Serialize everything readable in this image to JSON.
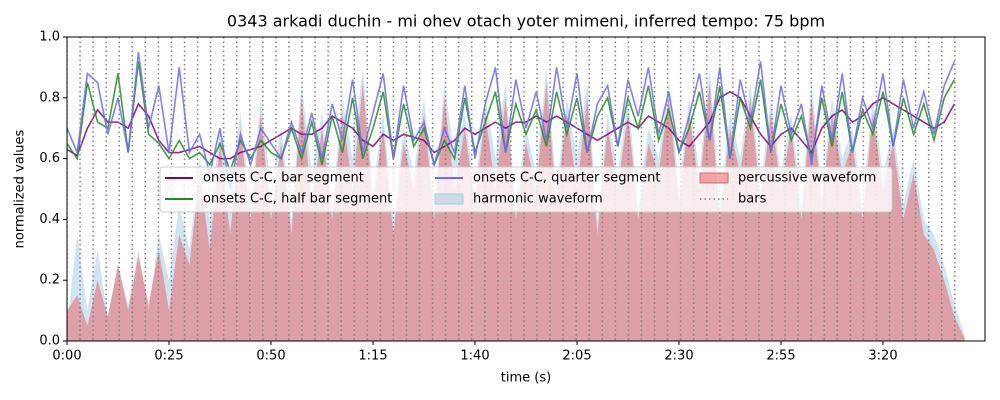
{
  "chart_data": {
    "type": "line",
    "title": "0343 arkadi duchin - mi ohev otach yoter mimeni, inferred tempo: 75 bpm",
    "xlabel": "time (s)",
    "ylabel": "normalized values",
    "xlim": [
      0,
      225
    ],
    "ylim": [
      0,
      1
    ],
    "xticks": [
      {
        "value": 0,
        "label": "0:00"
      },
      {
        "value": 25,
        "label": "0:25"
      },
      {
        "value": 50,
        "label": "0:50"
      },
      {
        "value": 75,
        "label": "1:15"
      },
      {
        "value": 100,
        "label": "1:40"
      },
      {
        "value": 125,
        "label": "2:05"
      },
      {
        "value": 150,
        "label": "2:30"
      },
      {
        "value": 175,
        "label": "2:55"
      },
      {
        "value": 200,
        "label": "3:20"
      }
    ],
    "yticks": [
      {
        "value": 0,
        "label": "0.0"
      },
      {
        "value": 0.2,
        "label": "0.2"
      },
      {
        "value": 0.4,
        "label": "0.4"
      },
      {
        "value": 0.6,
        "label": "0.6"
      },
      {
        "value": 0.8,
        "label": "0.8"
      },
      {
        "value": 1,
        "label": "1.0"
      }
    ],
    "legend": "center",
    "x": [
      0,
      2.5,
      5,
      7.5,
      10,
      12.5,
      15,
      17.5,
      20,
      22.5,
      25,
      27.5,
      30,
      32.5,
      35,
      37.5,
      40,
      42.5,
      45,
      47.5,
      50,
      52.5,
      55,
      57.5,
      60,
      62.5,
      65,
      67.5,
      70,
      72.5,
      75,
      77.5,
      80,
      82.5,
      85,
      87.5,
      90,
      92.5,
      95,
      97.5,
      100,
      102.5,
      105,
      107.5,
      110,
      112.5,
      115,
      117.5,
      120,
      122.5,
      125,
      127.5,
      130,
      132.5,
      135,
      137.5,
      140,
      142.5,
      145,
      147.5,
      150,
      152.5,
      155,
      157.5,
      160,
      162.5,
      165,
      167.5,
      170,
      172.5,
      175,
      177.5,
      180,
      182.5,
      185,
      187.5,
      190,
      192.5,
      195,
      197.5,
      200,
      202.5,
      205,
      207.5,
      210,
      212.5,
      215,
      217.5,
      220
    ],
    "series": [
      {
        "name": "onsets C-C, bar segment",
        "style": "line",
        "color": "#800080",
        "values": [
          0.63,
          0.61,
          0.7,
          0.76,
          0.72,
          0.72,
          0.7,
          0.78,
          0.74,
          0.66,
          0.62,
          0.62,
          0.63,
          0.64,
          0.62,
          0.6,
          0.6,
          0.62,
          0.63,
          0.64,
          0.66,
          0.68,
          0.7,
          0.68,
          0.68,
          0.7,
          0.74,
          0.72,
          0.7,
          0.66,
          0.64,
          0.68,
          0.66,
          0.68,
          0.67,
          0.66,
          0.62,
          0.64,
          0.66,
          0.7,
          0.68,
          0.7,
          0.72,
          0.7,
          0.72,
          0.72,
          0.74,
          0.72,
          0.74,
          0.72,
          0.7,
          0.68,
          0.66,
          0.68,
          0.7,
          0.72,
          0.7,
          0.74,
          0.72,
          0.7,
          0.66,
          0.64,
          0.68,
          0.72,
          0.8,
          0.82,
          0.8,
          0.74,
          0.68,
          0.64,
          0.68,
          0.7,
          0.66,
          0.62,
          0.7,
          0.74,
          0.76,
          0.72,
          0.74,
          0.78,
          0.8,
          0.78,
          0.76,
          0.74,
          0.72,
          0.7,
          0.72,
          0.78,
          null
        ]
      },
      {
        "name": "onsets C-C, half bar segment",
        "style": "line",
        "color": "#228b22",
        "values": [
          0.65,
          0.6,
          0.85,
          0.72,
          0.7,
          0.88,
          0.62,
          0.92,
          0.68,
          0.65,
          0.6,
          0.66,
          0.6,
          0.62,
          0.58,
          0.65,
          0.56,
          0.66,
          0.6,
          0.66,
          0.62,
          0.6,
          0.7,
          0.6,
          0.72,
          0.58,
          0.74,
          0.62,
          0.8,
          0.6,
          0.7,
          0.82,
          0.6,
          0.78,
          0.64,
          0.7,
          0.58,
          0.66,
          0.6,
          0.8,
          0.62,
          0.72,
          0.82,
          0.62,
          0.78,
          0.68,
          0.76,
          0.64,
          0.82,
          0.68,
          0.8,
          0.62,
          0.74,
          0.8,
          0.64,
          0.8,
          0.7,
          0.84,
          0.66,
          0.76,
          0.62,
          0.7,
          0.82,
          0.66,
          0.84,
          0.6,
          0.8,
          0.7,
          0.86,
          0.62,
          0.78,
          0.66,
          0.74,
          0.6,
          0.8,
          0.64,
          0.82,
          0.62,
          0.76,
          0.68,
          0.82,
          0.64,
          0.8,
          0.68,
          0.78,
          0.66,
          0.8,
          0.86,
          null
        ]
      },
      {
        "name": "onsets C-C, quarter segment",
        "style": "line",
        "color": "#6b6bee",
        "values": [
          0.7,
          0.62,
          0.88,
          0.85,
          0.68,
          0.8,
          0.62,
          0.95,
          0.7,
          0.84,
          0.62,
          0.9,
          0.62,
          0.68,
          0.55,
          0.7,
          0.5,
          0.68,
          0.58,
          0.7,
          0.65,
          0.6,
          0.72,
          0.62,
          0.75,
          0.6,
          0.78,
          0.66,
          0.86,
          0.62,
          0.75,
          0.88,
          0.6,
          0.84,
          0.66,
          0.72,
          0.58,
          0.7,
          0.62,
          0.84,
          0.6,
          0.78,
          0.9,
          0.62,
          0.86,
          0.7,
          0.82,
          0.66,
          0.9,
          0.7,
          0.88,
          0.62,
          0.78,
          0.84,
          0.64,
          0.86,
          0.74,
          0.9,
          0.68,
          0.82,
          0.62,
          0.74,
          0.88,
          0.66,
          0.9,
          0.6,
          0.86,
          0.72,
          0.92,
          0.62,
          0.84,
          0.68,
          0.78,
          0.58,
          0.84,
          0.66,
          0.88,
          0.62,
          0.8,
          0.7,
          0.88,
          0.64,
          0.86,
          0.7,
          0.82,
          0.68,
          0.84,
          0.92,
          null
        ]
      },
      {
        "name": "harmonic waveform",
        "style": "area",
        "color": "#a9cce3",
        "values": [
          0.05,
          0.35,
          0.1,
          0.3,
          0.08,
          0.25,
          0.12,
          0.3,
          0.1,
          0.35,
          0.2,
          0.45,
          0.3,
          0.6,
          0.4,
          0.7,
          0.5,
          0.75,
          0.45,
          0.8,
          0.5,
          0.7,
          0.4,
          0.85,
          0.55,
          0.75,
          0.45,
          0.8,
          0.6,
          0.9,
          0.5,
          0.75,
          0.4,
          0.7,
          0.55,
          0.8,
          0.45,
          0.85,
          0.6,
          0.75,
          0.5,
          0.8,
          0.6,
          0.85,
          0.45,
          0.7,
          0.55,
          0.9,
          0.5,
          0.8,
          0.6,
          0.85,
          0.4,
          0.75,
          0.55,
          0.8,
          0.45,
          0.7,
          0.6,
          0.85,
          0.5,
          0.8,
          0.55,
          0.9,
          0.45,
          0.75,
          0.6,
          0.85,
          0.5,
          0.8,
          0.55,
          0.75,
          0.45,
          0.85,
          0.5,
          0.8,
          0.6,
          0.7,
          0.45,
          0.8,
          0.55,
          0.7,
          0.45,
          0.6,
          0.4,
          0.35,
          0.25,
          0.12,
          0.02
        ]
      },
      {
        "name": "percussive waveform",
        "style": "area",
        "color": "#e8676e",
        "values": [
          0.1,
          0.15,
          0.05,
          0.2,
          0.08,
          0.25,
          0.1,
          0.28,
          0.12,
          0.3,
          0.1,
          0.35,
          0.25,
          0.55,
          0.3,
          0.65,
          0.35,
          0.7,
          0.4,
          0.75,
          0.4,
          0.65,
          0.35,
          0.8,
          0.45,
          0.7,
          0.4,
          0.75,
          0.5,
          0.85,
          0.45,
          0.7,
          0.35,
          0.65,
          0.5,
          0.75,
          0.4,
          0.8,
          0.5,
          0.7,
          0.45,
          0.75,
          0.5,
          0.8,
          0.4,
          0.65,
          0.5,
          0.85,
          0.45,
          0.75,
          0.5,
          0.8,
          0.35,
          0.7,
          0.5,
          0.75,
          0.4,
          0.65,
          0.55,
          0.8,
          0.45,
          0.75,
          0.5,
          0.85,
          0.4,
          0.7,
          0.55,
          0.8,
          0.45,
          0.75,
          0.5,
          0.7,
          0.4,
          0.8,
          0.45,
          0.75,
          0.55,
          0.65,
          0.4,
          0.75,
          0.5,
          0.65,
          0.4,
          0.55,
          0.35,
          0.3,
          0.2,
          0.08,
          0.01
        ]
      }
    ],
    "bars": {
      "name": "bars",
      "color": "#808080",
      "values": [
        0,
        3.2,
        6.4,
        9.6,
        12.8,
        16,
        19.2,
        22.4,
        25.6,
        28.8,
        32,
        35.2,
        38.4,
        41.6,
        44.8,
        48,
        51.2,
        54.4,
        57.6,
        60.8,
        64,
        67.2,
        70.4,
        73.6,
        76.8,
        80,
        83.2,
        86.4,
        89.6,
        92.8,
        96,
        99.2,
        102.4,
        105.6,
        108.8,
        112,
        115.2,
        118.4,
        121.6,
        124.8,
        128,
        131.2,
        134.4,
        137.6,
        140.8,
        144,
        147.2,
        150.4,
        153.6,
        156.8,
        160,
        163.2,
        166.4,
        169.6,
        172.8,
        176,
        179.2,
        182.4,
        185.6,
        188.8,
        192,
        195.2,
        198.4,
        201.6,
        204.8,
        208,
        211.2,
        214.4,
        217.6
      ]
    }
  }
}
